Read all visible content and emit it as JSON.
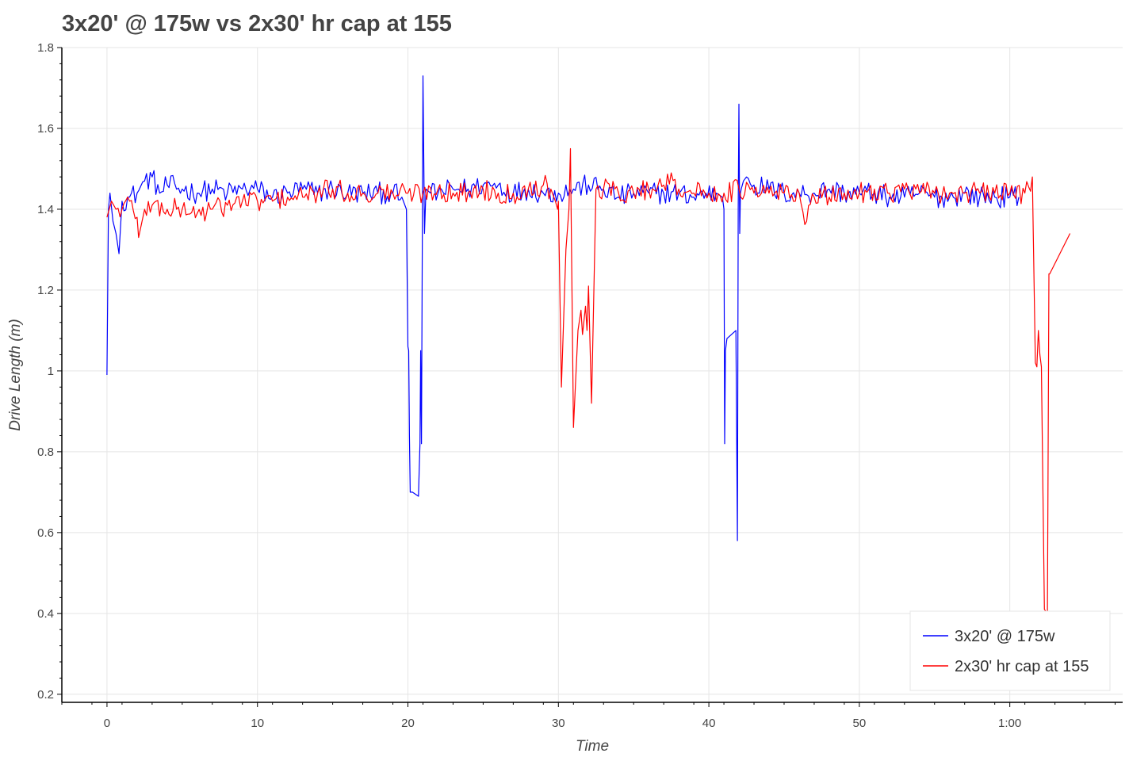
{
  "chart_data": {
    "type": "line",
    "title": "3x20' @ 175w vs 2x30' hr cap at 155",
    "xlabel": "Time",
    "ylabel": "Drive Length (m)",
    "x_unit": "minutes",
    "xlim": [
      -3,
      67.5
    ],
    "ylim": [
      0.18,
      1.8
    ],
    "x_ticks": [
      {
        "value": 0,
        "label": "0"
      },
      {
        "value": 10,
        "label": "10"
      },
      {
        "value": 20,
        "label": "20"
      },
      {
        "value": 30,
        "label": "30"
      },
      {
        "value": 40,
        "label": "40"
      },
      {
        "value": 50,
        "label": "50"
      },
      {
        "value": 60,
        "label": "1:00"
      }
    ],
    "y_ticks": [
      {
        "value": 0.2,
        "label": "0.2"
      },
      {
        "value": 0.4,
        "label": "0.4"
      },
      {
        "value": 0.6,
        "label": "0.6"
      },
      {
        "value": 0.8,
        "label": "0.8"
      },
      {
        "value": 1.0,
        "label": "1"
      },
      {
        "value": 1.2,
        "label": "1.2"
      },
      {
        "value": 1.4,
        "label": "1.4"
      },
      {
        "value": 1.6,
        "label": "1.6"
      },
      {
        "value": 1.8,
        "label": "1.8"
      }
    ],
    "grid": true,
    "legend_position": "bottom-right",
    "series": [
      {
        "name": "3x20' @ 175w",
        "color": "#0000ff",
        "x": [
          0,
          0.1,
          0.2,
          0.4,
          0.6,
          0.8,
          1.0,
          1.5,
          2.0,
          2.5,
          3.0,
          3.5,
          4.0,
          5.0,
          6.0,
          7.0,
          8.0,
          9.0,
          10.0,
          11.0,
          12.0,
          13.0,
          14.0,
          15.0,
          16.0,
          17.0,
          18.0,
          19.0,
          19.6,
          19.9,
          20.0,
          20.05,
          20.1,
          20.15,
          20.3,
          20.7,
          20.8,
          20.85,
          20.9,
          21.0,
          21.1,
          21.2,
          21.5,
          22.0,
          23.0,
          24.0,
          25.0,
          26.0,
          27.0,
          28.0,
          29.0,
          30.0,
          31.0,
          32.0,
          33.0,
          34.0,
          35.0,
          36.0,
          37.0,
          38.0,
          39.0,
          39.8,
          40.5,
          40.9,
          41.0,
          41.05,
          41.1,
          41.2,
          41.8,
          41.9,
          41.95,
          42.0,
          42.05,
          42.1,
          42.15,
          42.3,
          42.5,
          43.0,
          44.0,
          45.0,
          46.0,
          47.0,
          48.0,
          49.0,
          50.0,
          51.0,
          52.0,
          53.0,
          54.0,
          55.0,
          56.0,
          57.0,
          58.0,
          59.0,
          60.0,
          60.6
        ],
        "y": [
          0.99,
          1.4,
          1.44,
          1.37,
          1.34,
          1.29,
          1.42,
          1.43,
          1.44,
          1.47,
          1.48,
          1.44,
          1.46,
          1.45,
          1.44,
          1.45,
          1.44,
          1.45,
          1.45,
          1.43,
          1.44,
          1.45,
          1.44,
          1.45,
          1.44,
          1.44,
          1.44,
          1.44,
          1.43,
          1.4,
          1.06,
          1.05,
          0.84,
          0.7,
          0.7,
          0.69,
          0.82,
          1.05,
          0.82,
          1.73,
          1.34,
          1.45,
          1.44,
          1.44,
          1.45,
          1.45,
          1.46,
          1.46,
          1.44,
          1.45,
          1.44,
          1.44,
          1.45,
          1.46,
          1.45,
          1.43,
          1.44,
          1.44,
          1.44,
          1.44,
          1.43,
          1.44,
          1.44,
          1.43,
          1.4,
          0.82,
          1.05,
          1.08,
          1.1,
          0.58,
          1.4,
          1.66,
          1.34,
          1.44,
          1.45,
          1.47,
          1.48,
          1.46,
          1.45,
          1.44,
          1.44,
          1.44,
          1.45,
          1.44,
          1.44,
          1.44,
          1.43,
          1.43,
          1.44,
          1.43,
          1.43,
          1.44,
          1.43,
          1.43,
          1.43,
          1.43
        ]
      },
      {
        "name": "2x30' hr cap at 155",
        "color": "#ff0000",
        "x": [
          0,
          0.3,
          0.6,
          1.0,
          1.5,
          2.0,
          2.1,
          2.5,
          3.0,
          4.0,
          5.0,
          6.0,
          7.0,
          8.0,
          9.0,
          10.0,
          11.0,
          12.0,
          13.0,
          14.0,
          15.0,
          16.0,
          17.0,
          18.0,
          19.0,
          20.0,
          21.0,
          22.0,
          23.0,
          24.0,
          25.0,
          26.0,
          27.0,
          28.0,
          29.0,
          29.5,
          29.8,
          29.95,
          30.0,
          30.2,
          30.5,
          30.7,
          30.8,
          31.0,
          31.3,
          31.5,
          31.6,
          31.8,
          31.9,
          32.0,
          32.2,
          32.5,
          33.0,
          34.0,
          35.0,
          36.0,
          37.0,
          37.5,
          38.0,
          39.0,
          40.0,
          41.0,
          42.0,
          43.0,
          44.0,
          45.0,
          46.0,
          46.5,
          47.0,
          48.0,
          49.0,
          50.0,
          51.0,
          52.0,
          53.0,
          54.0,
          55.0,
          56.0,
          57.0,
          58.0,
          59.0,
          60.0,
          61.0,
          61.5,
          61.7,
          61.8,
          61.9,
          62.0,
          62.1,
          62.3,
          62.5,
          62.6,
          62.65,
          64.0
        ],
        "y": [
          1.38,
          1.42,
          1.4,
          1.4,
          1.42,
          1.38,
          1.33,
          1.4,
          1.41,
          1.4,
          1.4,
          1.39,
          1.4,
          1.41,
          1.42,
          1.42,
          1.42,
          1.43,
          1.43,
          1.44,
          1.45,
          1.44,
          1.44,
          1.44,
          1.44,
          1.44,
          1.44,
          1.45,
          1.44,
          1.44,
          1.45,
          1.44,
          1.44,
          1.45,
          1.46,
          1.45,
          1.42,
          1.4,
          1.42,
          0.96,
          1.3,
          1.4,
          1.55,
          0.86,
          1.1,
          1.15,
          1.09,
          1.16,
          1.1,
          1.21,
          0.92,
          1.45,
          1.45,
          1.44,
          1.44,
          1.45,
          1.46,
          1.49,
          1.45,
          1.44,
          1.44,
          1.44,
          1.45,
          1.44,
          1.44,
          1.44,
          1.44,
          1.37,
          1.43,
          1.43,
          1.44,
          1.44,
          1.45,
          1.44,
          1.45,
          1.44,
          1.44,
          1.44,
          1.44,
          1.44,
          1.44,
          1.44,
          1.44,
          1.48,
          1.02,
          1.01,
          1.1,
          1.04,
          1.01,
          0.41,
          0.4,
          1.24,
          1.24,
          1.34
        ]
      }
    ]
  }
}
